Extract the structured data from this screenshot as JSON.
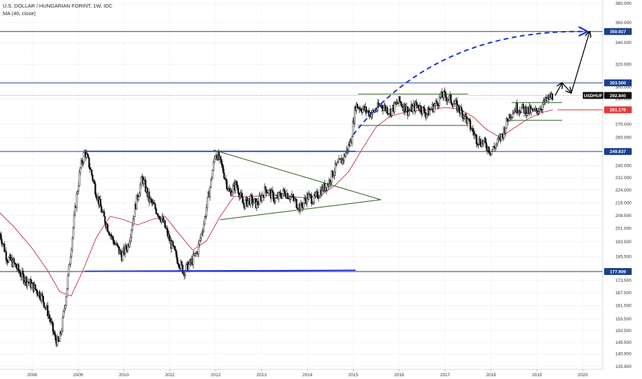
{
  "header": {
    "symbol_line": "U.S. DOLLAR / HUNGARIAN FORINT, 1W, IDC",
    "indicator_line": "MA (40, close)"
  },
  "chart_data": {
    "type": "candlestick",
    "title": "U.S. DOLLAR / HUNGARIAN FORINT, 1W, IDC",
    "symbol": "USDHUF",
    "indicator": "MA (40, close)",
    "y_scale": "log",
    "ylim": [
      135.9,
      380.0
    ],
    "y_ticks": [
      380.0,
      360.0,
      340.0,
      320.0,
      300.0,
      290.0,
      270.0,
      260.0,
      250.0,
      240.0,
      232.0,
      224.0,
      216.0,
      208.5,
      201.0,
      193.5,
      185.5,
      177.5,
      173.5,
      167.5,
      161.5,
      155.5,
      150.5,
      145.5,
      140.9,
      135.9
    ],
    "y_tick_labels": [
      "380.000",
      "360.000",
      "340.000",
      "320.000",
      "300.000",
      "290.000",
      "270.000",
      "260.000",
      "250.000",
      "240.000",
      "232.000",
      "224.000",
      "216.000",
      "208.500",
      "201.000",
      "193.500",
      "185.500",
      "177.500",
      "173.500",
      "167.500",
      "161.500",
      "155.500",
      "150.500",
      "145.500",
      "140.900",
      "135.900"
    ],
    "x_ticks": [
      "2008",
      "2009",
      "2010",
      "2011",
      "2012",
      "2013",
      "2014",
      "2015",
      "2016",
      "2017",
      "2018",
      "2019",
      "2020"
    ],
    "price_path": [
      [
        2007.3,
        198
      ],
      [
        2007.45,
        185
      ],
      [
        2007.6,
        182
      ],
      [
        2007.8,
        175
      ],
      [
        2008.0,
        171
      ],
      [
        2008.2,
        166
      ],
      [
        2008.35,
        158
      ],
      [
        2008.5,
        147
      ],
      [
        2008.58,
        145
      ],
      [
        2008.65,
        152
      ],
      [
        2008.75,
        168
      ],
      [
        2008.85,
        190
      ],
      [
        2008.95,
        215
      ],
      [
        2009.05,
        238
      ],
      [
        2009.15,
        250
      ],
      [
        2009.25,
        240
      ],
      [
        2009.4,
        222
      ],
      [
        2009.55,
        208
      ],
      [
        2009.75,
        195
      ],
      [
        2009.95,
        186
      ],
      [
        2010.1,
        192
      ],
      [
        2010.25,
        214
      ],
      [
        2010.4,
        232
      ],
      [
        2010.55,
        218
      ],
      [
        2010.7,
        212
      ],
      [
        2010.85,
        205
      ],
      [
        2011.0,
        194
      ],
      [
        2011.15,
        185
      ],
      [
        2011.3,
        178
      ],
      [
        2011.45,
        182
      ],
      [
        2011.6,
        188
      ],
      [
        2011.75,
        205
      ],
      [
        2011.9,
        230
      ],
      [
        2012.0,
        250
      ],
      [
        2012.15,
        238
      ],
      [
        2012.3,
        222
      ],
      [
        2012.45,
        228
      ],
      [
        2012.6,
        215
      ],
      [
        2012.75,
        218
      ],
      [
        2012.9,
        215
      ],
      [
        2013.1,
        225
      ],
      [
        2013.3,
        218
      ],
      [
        2013.5,
        223
      ],
      [
        2013.7,
        218
      ],
      [
        2013.85,
        213
      ],
      [
        2014.0,
        220
      ],
      [
        2014.15,
        218
      ],
      [
        2014.3,
        224
      ],
      [
        2014.45,
        228
      ],
      [
        2014.6,
        238
      ],
      [
        2014.8,
        246
      ],
      [
        2014.95,
        258
      ],
      [
        2015.05,
        285
      ],
      [
        2015.2,
        282
      ],
      [
        2015.4,
        278
      ],
      [
        2015.6,
        285
      ],
      [
        2015.8,
        280
      ],
      [
        2016.0,
        288
      ],
      [
        2016.2,
        280
      ],
      [
        2016.4,
        285
      ],
      [
        2016.6,
        278
      ],
      [
        2016.8,
        286
      ],
      [
        2016.95,
        293
      ],
      [
        2017.1,
        290
      ],
      [
        2017.25,
        284
      ],
      [
        2017.4,
        278
      ],
      [
        2017.55,
        268
      ],
      [
        2017.7,
        258
      ],
      [
        2017.85,
        256
      ],
      [
        2018.0,
        250
      ],
      [
        2018.1,
        254
      ],
      [
        2018.25,
        262
      ],
      [
        2018.4,
        277
      ],
      [
        2018.55,
        283
      ],
      [
        2018.75,
        281
      ],
      [
        2018.95,
        279
      ],
      [
        2019.1,
        284
      ],
      [
        2019.25,
        290
      ],
      [
        2019.35,
        292.84
      ]
    ],
    "ma_path": [
      [
        2007.3,
        210
      ],
      [
        2007.6,
        202
      ],
      [
        2008.0,
        190
      ],
      [
        2008.35,
        178
      ],
      [
        2008.6,
        168
      ],
      [
        2008.85,
        166
      ],
      [
        2009.1,
        178
      ],
      [
        2009.4,
        196
      ],
      [
        2009.7,
        208
      ],
      [
        2010.0,
        206
      ],
      [
        2010.3,
        203
      ],
      [
        2010.6,
        206
      ],
      [
        2010.9,
        208
      ],
      [
        2011.2,
        198
      ],
      [
        2011.5,
        189
      ],
      [
        2011.8,
        194
      ],
      [
        2012.1,
        208
      ],
      [
        2012.4,
        220
      ],
      [
        2012.8,
        220
      ],
      [
        2013.2,
        221
      ],
      [
        2013.6,
        220
      ],
      [
        2014.0,
        219
      ],
      [
        2014.3,
        221
      ],
      [
        2014.6,
        227
      ],
      [
        2014.9,
        236
      ],
      [
        2015.2,
        252
      ],
      [
        2015.5,
        268
      ],
      [
        2015.8,
        276
      ],
      [
        2016.2,
        280
      ],
      [
        2016.6,
        281
      ],
      [
        2017.0,
        283
      ],
      [
        2017.3,
        282
      ],
      [
        2017.6,
        276
      ],
      [
        2017.9,
        266
      ],
      [
        2018.2,
        260
      ],
      [
        2018.5,
        267
      ],
      [
        2018.8,
        274
      ],
      [
        2019.1,
        279
      ],
      [
        2019.35,
        281.176
      ]
    ],
    "horizontal_levels": [
      {
        "value": 350.927,
        "label": "350.927",
        "color": "#1c3f8f"
      },
      {
        "value": 303.5,
        "label": "303.500",
        "color": "#1c3f8f"
      },
      {
        "value": 292.84,
        "label": "292.840",
        "color": "#111111",
        "tag": "USDHUF"
      },
      {
        "value": 281.176,
        "label": "281.176",
        "color": "#e53935"
      },
      {
        "value": 249.837,
        "label": "249.837",
        "color": "#1c3f8f"
      },
      {
        "value": 177.909,
        "label": "177.909",
        "color": "#1c3f8f"
      }
    ],
    "annotations": [
      {
        "type": "trendline",
        "color": "#1f2fd6",
        "from": [
          2009.15,
          250
        ],
        "to": [
          2015.05,
          250
        ]
      },
      {
        "type": "trendline",
        "color": "#1f2fd6",
        "from": [
          2009.15,
          178
        ],
        "to": [
          2015.05,
          178.5
        ]
      },
      {
        "type": "trendline",
        "color": "#3f6b2a",
        "from": [
          2011.95,
          251
        ],
        "to": [
          2015.6,
          218
        ]
      },
      {
        "type": "trendline",
        "color": "#3f6b2a",
        "from": [
          2012.1,
          206
        ],
        "to": [
          2015.6,
          218
        ]
      },
      {
        "type": "trendline",
        "color": "#3f6b2a",
        "from": [
          2015.1,
          294
        ],
        "to": [
          2017.5,
          294
        ]
      },
      {
        "type": "trendline",
        "color": "#3f6b2a",
        "from": [
          2015.1,
          269
        ],
        "to": [
          2017.5,
          269
        ]
      },
      {
        "type": "trendline",
        "color": "#3f6b2a",
        "from": [
          2018.45,
          287
        ],
        "to": [
          2019.55,
          287
        ]
      },
      {
        "type": "trendline",
        "color": "#3f6b2a",
        "from": [
          2018.45,
          273
        ],
        "to": [
          2019.55,
          273
        ]
      },
      {
        "type": "projection",
        "style": "dashed",
        "color": "#1f2fd6",
        "from": [
          2015.0,
          262
        ],
        "to": [
          2020.15,
          350.927
        ]
      },
      {
        "type": "projection",
        "style": "solid-arrows",
        "color": "#000000",
        "points": [
          [
            2019.4,
            292.84
          ],
          [
            2019.55,
            303.5
          ],
          [
            2019.75,
            295
          ],
          [
            2020.15,
            350.927
          ]
        ]
      }
    ]
  },
  "colors": {
    "candle": "#111111",
    "ma_line": "#c2404f",
    "blue_level": "#1c3f8f",
    "dashed_arrow": "#1f2fd6",
    "pattern_lines": "#3f6b2a",
    "red_level": "#e53935"
  }
}
